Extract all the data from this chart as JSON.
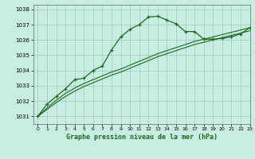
{
  "title": "Graphe pression niveau de la mer (hPa)",
  "bg_color": "#c8eee4",
  "grid_color": "#a0c8b8",
  "line_color": "#1a6b1a",
  "xlim": [
    -0.5,
    23
  ],
  "ylim": [
    1030.5,
    1038.3
  ],
  "yticks": [
    1031,
    1032,
    1033,
    1034,
    1035,
    1036,
    1037,
    1038
  ],
  "xticks": [
    0,
    1,
    2,
    3,
    4,
    5,
    6,
    7,
    8,
    9,
    10,
    11,
    12,
    13,
    14,
    15,
    16,
    17,
    18,
    19,
    20,
    21,
    22,
    23
  ],
  "main_line": [
    1031.0,
    1031.8,
    1032.3,
    1032.8,
    1033.4,
    1033.5,
    1034.0,
    1034.3,
    1035.35,
    1036.2,
    1036.7,
    1037.0,
    1037.5,
    1037.55,
    1037.3,
    1037.05,
    1036.55,
    1036.55,
    1036.05,
    1036.05,
    1036.1,
    1036.2,
    1036.4,
    1036.8
  ],
  "trend_line1": [
    1031.0,
    1031.55,
    1032.05,
    1032.5,
    1032.85,
    1033.15,
    1033.4,
    1033.65,
    1033.9,
    1034.1,
    1034.35,
    1034.6,
    1034.85,
    1035.1,
    1035.3,
    1035.5,
    1035.7,
    1035.9,
    1036.05,
    1036.2,
    1036.35,
    1036.5,
    1036.65,
    1036.8
  ],
  "trend_line2": [
    1031.0,
    1031.45,
    1031.9,
    1032.3,
    1032.65,
    1032.95,
    1033.2,
    1033.45,
    1033.7,
    1033.9,
    1034.15,
    1034.4,
    1034.65,
    1034.9,
    1035.1,
    1035.3,
    1035.5,
    1035.7,
    1035.85,
    1036.0,
    1036.15,
    1036.3,
    1036.45,
    1036.6
  ]
}
